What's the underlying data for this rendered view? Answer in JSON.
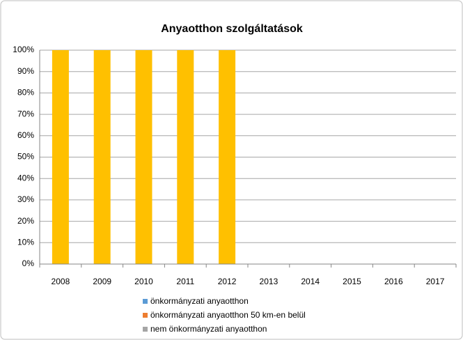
{
  "chart_data": {
    "type": "stacked_bar",
    "title": "Anyaotthon szolgáltatások",
    "categories": [
      "2008",
      "2009",
      "2010",
      "2011",
      "2012",
      "2013",
      "2014",
      "2015",
      "2016",
      "2017"
    ],
    "series": [
      {
        "name": "önkormányzati anyaotthon",
        "color": "#5b9bd5",
        "values": [
          0,
          0,
          0,
          0,
          0,
          0,
          0,
          0,
          0,
          0
        ]
      },
      {
        "name": "önkormányzati anyaotthon 50 km-en belül",
        "color": "#ed7d31",
        "values": [
          0,
          0,
          0,
          0,
          0,
          0,
          0,
          0,
          0,
          0
        ]
      },
      {
        "name": "nem önkormányzati anyaotthon",
        "color": "#a5a5a5",
        "values": [
          0,
          0,
          0,
          0,
          0,
          0,
          0,
          0,
          0,
          0
        ]
      },
      {
        "color": "#ffc000",
        "values": [
          100,
          100,
          100,
          100,
          100,
          0,
          0,
          0,
          0,
          0
        ]
      }
    ],
    "ylim": [
      0,
      100
    ],
    "yticks": [
      {
        "value": 0,
        "label": "0%"
      },
      {
        "value": 10,
        "label": "10%"
      },
      {
        "value": 20,
        "label": "20%"
      },
      {
        "value": 30,
        "label": "30%"
      },
      {
        "value": 40,
        "label": "40%"
      },
      {
        "value": 50,
        "label": "50%"
      },
      {
        "value": 60,
        "label": "60%"
      },
      {
        "value": 70,
        "label": "70%"
      },
      {
        "value": 80,
        "label": "80%"
      },
      {
        "value": 90,
        "label": "90%"
      },
      {
        "value": 100,
        "label": "100%"
      }
    ],
    "grid": true
  }
}
